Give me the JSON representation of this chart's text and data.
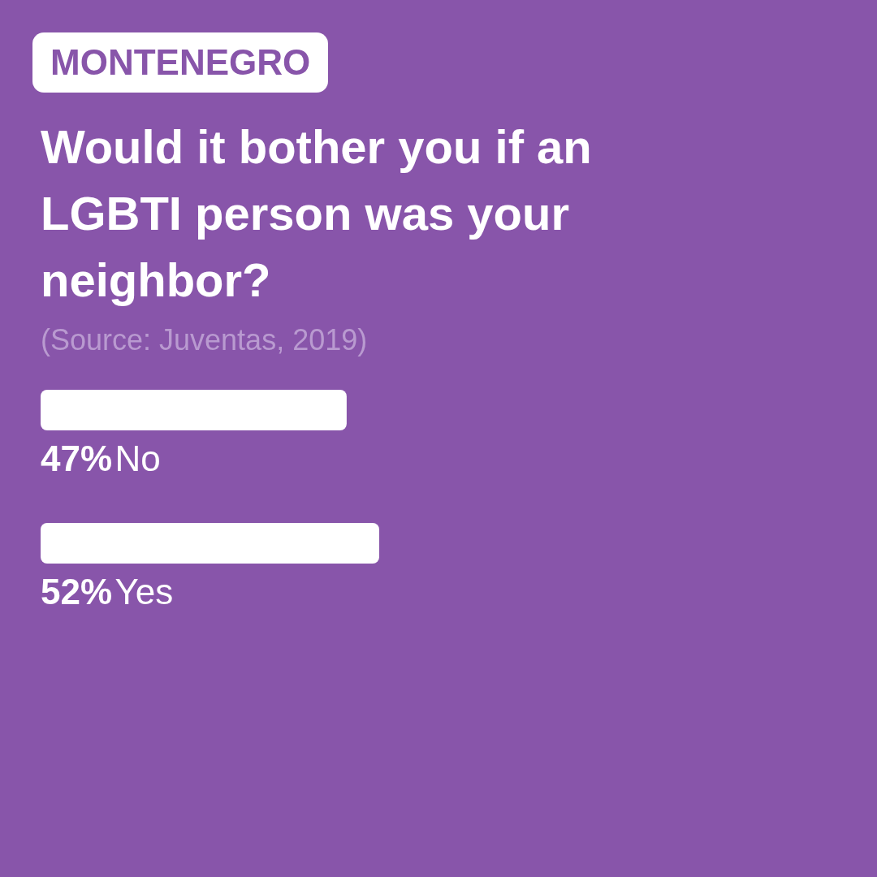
{
  "chart_data": {
    "type": "bar",
    "orientation": "horizontal",
    "subtitle": "MONTENEGRO",
    "title": "Would it bother you if an LGBTI person was your neighbor?",
    "annotations": [
      "(Source: Juventas, 2019)"
    ],
    "categories": [
      "No",
      "Yes"
    ],
    "values": [
      47,
      52
    ],
    "value_labels": [
      "47%",
      "52%"
    ],
    "color": "#ffffff"
  }
}
